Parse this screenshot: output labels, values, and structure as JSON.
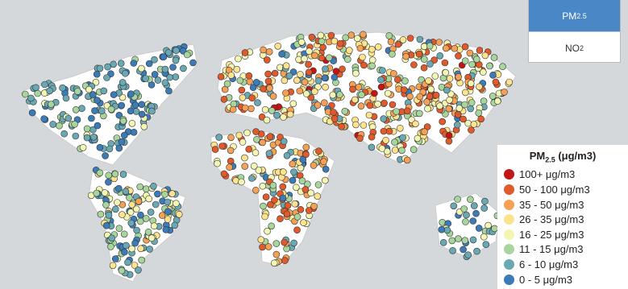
{
  "toggle": {
    "buttons": [
      {
        "base": "PM",
        "sub": "2.5",
        "active": true
      },
      {
        "base": "NO",
        "sub": "2",
        "active": false
      }
    ]
  },
  "legend": {
    "title": {
      "base": "PM",
      "sub": "2.5",
      "unit": " (μg/m3)"
    },
    "items": [
      {
        "label": "100+ μg/m3",
        "color": "#c41515"
      },
      {
        "label": "50 - 100 μg/m3",
        "color": "#e05a2b"
      },
      {
        "label": "35 - 50 μg/m3",
        "color": "#f4a155"
      },
      {
        "label": "26 - 35 μg/m3",
        "color": "#fde38d"
      },
      {
        "label": "16 - 25 μg/m3",
        "color": "#f3f5b2"
      },
      {
        "label": "11 - 15 μg/m3",
        "color": "#a8d59c"
      },
      {
        "label": "6 - 10 μg/m3",
        "color": "#6aa8b3"
      },
      {
        "label": "0 - 5 μg/m3",
        "color": "#3b7bb8"
      }
    ]
  }
}
